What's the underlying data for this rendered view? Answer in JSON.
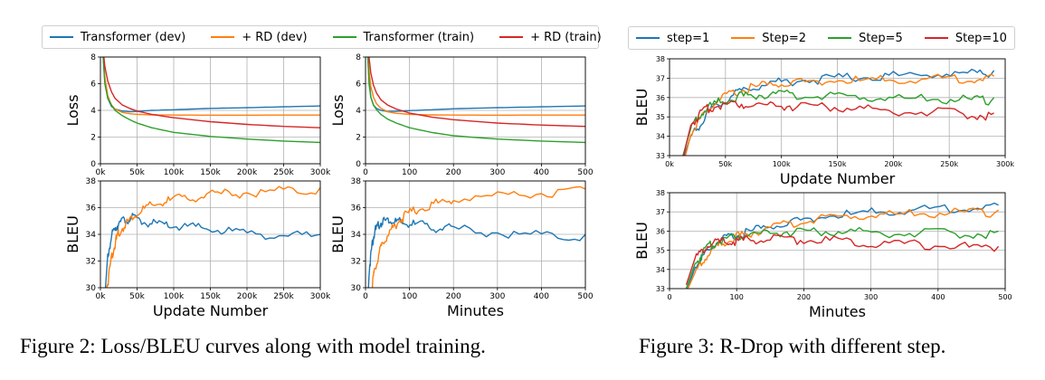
{
  "figure2": {
    "caption": "Figure 2: Loss/BLEU curves along with model training.",
    "legend": [
      {
        "label": "Transformer (dev)",
        "color": "#1f77b4"
      },
      {
        "label": "+ RD (dev)",
        "color": "#ff7f0e"
      },
      {
        "label": "Transformer (train)",
        "color": "#2ca02c"
      },
      {
        "label": "+ RD (train)",
        "color": "#d62728"
      }
    ]
  },
  "figure3": {
    "caption": "Figure 3: R-Drop with different step.",
    "legend": [
      {
        "label": "step=1",
        "color": "#1f77b4"
      },
      {
        "label": "Step=2",
        "color": "#ff7f0e"
      },
      {
        "label": "Step=5",
        "color": "#2ca02c"
      },
      {
        "label": "Step=10",
        "color": "#d62728"
      }
    ]
  },
  "chart_data": [
    {
      "id": "f2-loss-update",
      "type": "line",
      "xlabel": "",
      "ylabel": "Loss",
      "xlim": [
        0,
        300000
      ],
      "ylim": [
        0,
        8
      ],
      "xticks": [
        0,
        50000,
        100000,
        150000,
        200000,
        250000,
        300000
      ],
      "xticklabels": [
        "0k",
        "50k",
        "100k",
        "150k",
        "200k",
        "250k",
        "300k"
      ],
      "yticks": [
        0,
        2,
        4,
        6,
        8
      ],
      "yticklabels": [
        "0",
        "2",
        "4",
        "6",
        "8"
      ],
      "grid": true,
      "series": [
        {
          "name": "Transformer (dev)",
          "color": "#1f77b4",
          "x": [
            2000,
            6000,
            10000,
            15000,
            20000,
            30000,
            40000,
            50000,
            70000,
            100000,
            150000,
            200000,
            250000,
            300000
          ],
          "y": [
            9.5,
            6.2,
            4.9,
            4.3,
            4.1,
            3.95,
            3.9,
            3.92,
            4.0,
            4.05,
            4.15,
            4.2,
            4.27,
            4.33
          ]
        },
        {
          "name": "+ RD (dev)",
          "color": "#ff7f0e",
          "x": [
            2000,
            6000,
            10000,
            15000,
            20000,
            30000,
            40000,
            50000,
            70000,
            100000,
            150000,
            200000,
            250000,
            300000
          ],
          "y": [
            9.5,
            6.5,
            5.1,
            4.4,
            4.1,
            3.85,
            3.75,
            3.7,
            3.66,
            3.65,
            3.64,
            3.64,
            3.65,
            3.65
          ]
        },
        {
          "name": "Transformer (train)",
          "color": "#2ca02c",
          "x": [
            2000,
            6000,
            10000,
            15000,
            20000,
            30000,
            40000,
            50000,
            70000,
            100000,
            150000,
            200000,
            250000,
            300000
          ],
          "y": [
            9.5,
            6.0,
            4.9,
            4.4,
            4.0,
            3.6,
            3.3,
            3.05,
            2.7,
            2.35,
            2.05,
            1.85,
            1.7,
            1.6
          ]
        },
        {
          "name": "+ RD (train)",
          "color": "#d62728",
          "x": [
            2000,
            6000,
            10000,
            15000,
            20000,
            30000,
            40000,
            50000,
            70000,
            100000,
            150000,
            200000,
            250000,
            300000
          ],
          "y": [
            9.5,
            7.3,
            6.2,
            5.4,
            4.9,
            4.4,
            4.15,
            3.95,
            3.7,
            3.45,
            3.15,
            2.95,
            2.8,
            2.7
          ]
        }
      ]
    },
    {
      "id": "f2-loss-minutes",
      "type": "line",
      "xlabel": "",
      "ylabel": "Loss",
      "xlim": [
        0,
        500
      ],
      "ylim": [
        0,
        8
      ],
      "xticks": [
        0,
        100,
        200,
        300,
        400,
        500
      ],
      "xticklabels": [
        "0",
        "100",
        "200",
        "300",
        "400",
        "500"
      ],
      "yticks": [
        0,
        2,
        4,
        6,
        8
      ],
      "yticklabels": [
        "0",
        "2",
        "4",
        "6",
        "8"
      ],
      "grid": true,
      "series": [
        {
          "name": "Transformer (dev)",
          "color": "#1f77b4",
          "x": [
            3,
            8,
            12,
            18,
            25,
            35,
            50,
            70,
            100,
            150,
            200,
            300,
            400,
            500
          ],
          "y": [
            9.5,
            6.3,
            5.0,
            4.4,
            4.15,
            4.0,
            3.92,
            3.93,
            3.98,
            4.05,
            4.12,
            4.2,
            4.27,
            4.33
          ]
        },
        {
          "name": "+ RD (dev)",
          "color": "#ff7f0e",
          "x": [
            3,
            8,
            12,
            18,
            25,
            35,
            50,
            70,
            100,
            150,
            200,
            300,
            400,
            500
          ],
          "y": [
            9.5,
            7.0,
            5.8,
            5.0,
            4.5,
            4.15,
            3.9,
            3.78,
            3.7,
            3.66,
            3.65,
            3.64,
            3.65,
            3.65
          ]
        },
        {
          "name": "Transformer (train)",
          "color": "#2ca02c",
          "x": [
            3,
            8,
            12,
            18,
            25,
            35,
            50,
            70,
            100,
            150,
            200,
            300,
            400,
            500
          ],
          "y": [
            9.5,
            6.0,
            5.0,
            4.4,
            4.05,
            3.7,
            3.35,
            3.05,
            2.7,
            2.35,
            2.1,
            1.85,
            1.7,
            1.6
          ]
        },
        {
          "name": "+ RD (train)",
          "color": "#d62728",
          "x": [
            3,
            8,
            12,
            18,
            25,
            35,
            50,
            70,
            100,
            150,
            200,
            300,
            400,
            500
          ],
          "y": [
            9.5,
            8.0,
            6.8,
            5.9,
            5.3,
            4.8,
            4.4,
            4.1,
            3.8,
            3.5,
            3.3,
            3.05,
            2.9,
            2.8
          ]
        }
      ]
    },
    {
      "id": "f2-bleu-update",
      "type": "line",
      "xlabel": "Update Number",
      "ylabel": "BLEU",
      "xlim": [
        0,
        300000
      ],
      "ylim": [
        30,
        38
      ],
      "xticks": [
        0,
        50000,
        100000,
        150000,
        200000,
        250000,
        300000
      ],
      "xticklabels": [
        "0k",
        "50k",
        "100k",
        "150k",
        "200k",
        "250k",
        "300k"
      ],
      "yticks": [
        30,
        32,
        34,
        36,
        38
      ],
      "yticklabels": [
        "30",
        "32",
        "34",
        "36",
        "38"
      ],
      "grid": true,
      "series": [
        {
          "name": "Transformer (dev)",
          "color": "#1f77b4",
          "x": [
            5000,
            10000,
            15000,
            20000,
            25000,
            35000,
            45000,
            60000,
            80000,
            100000,
            130000,
            160000,
            200000,
            250000,
            300000
          ],
          "y": [
            28.5,
            32.5,
            34.0,
            34.7,
            35.0,
            35.3,
            35.4,
            35.1,
            34.9,
            34.8,
            34.7,
            34.5,
            34.3,
            34.1,
            34.0
          ]
        },
        {
          "name": "+ RD (dev)",
          "color": "#ff7f0e",
          "x": [
            5000,
            10000,
            15000,
            20000,
            25000,
            35000,
            45000,
            60000,
            80000,
            100000,
            130000,
            160000,
            200000,
            250000,
            300000
          ],
          "y": [
            28.0,
            30.5,
            32.5,
            33.5,
            34.3,
            35.0,
            35.6,
            36.1,
            36.5,
            36.8,
            37.0,
            37.2,
            37.3,
            37.45,
            37.5
          ]
        }
      ]
    },
    {
      "id": "f2-bleu-minutes",
      "type": "line",
      "xlabel": "Minutes",
      "ylabel": "BLEU",
      "xlim": [
        0,
        500
      ],
      "ylim": [
        30,
        38
      ],
      "xticks": [
        0,
        100,
        200,
        300,
        400,
        500
      ],
      "xticklabels": [
        "0",
        "100",
        "200",
        "300",
        "400",
        "500"
      ],
      "yticks": [
        30,
        32,
        34,
        36,
        38
      ],
      "yticklabels": [
        "30",
        "32",
        "34",
        "36",
        "38"
      ],
      "grid": true,
      "series": [
        {
          "name": "Transformer (dev)",
          "color": "#1f77b4",
          "x": [
            5,
            10,
            15,
            20,
            30,
            40,
            55,
            70,
            90,
            120,
            160,
            200,
            300,
            400,
            500
          ],
          "y": [
            29.0,
            32.0,
            33.5,
            34.3,
            34.9,
            35.2,
            35.3,
            35.1,
            35.0,
            34.9,
            34.7,
            34.6,
            34.3,
            34.1,
            34.0
          ]
        },
        {
          "name": "+ RD (dev)",
          "color": "#ff7f0e",
          "x": [
            5,
            10,
            15,
            20,
            30,
            40,
            55,
            70,
            90,
            120,
            160,
            200,
            300,
            400,
            500
          ],
          "y": [
            27.5,
            29.0,
            30.3,
            31.3,
            32.7,
            33.6,
            34.4,
            35.0,
            35.6,
            36.1,
            36.5,
            36.8,
            37.1,
            37.3,
            37.4
          ]
        }
      ]
    },
    {
      "id": "f3-update",
      "type": "line",
      "xlabel": "Update Number",
      "ylabel": "BLEU",
      "xlim": [
        0,
        300000
      ],
      "ylim": [
        33,
        38
      ],
      "xticks": [
        0,
        50000,
        100000,
        150000,
        200000,
        250000,
        300000
      ],
      "xticklabels": [
        "0k",
        "50k",
        "100k",
        "150k",
        "200k",
        "250k",
        "300k"
      ],
      "yticks": [
        33,
        34,
        35,
        36,
        37,
        38
      ],
      "yticklabels": [
        "33",
        "34",
        "35",
        "36",
        "37",
        "38"
      ],
      "grid": true,
      "series": [
        {
          "name": "step=1",
          "color": "#1f77b4",
          "x": [
            12000,
            20000,
            30000,
            40000,
            55000,
            70000,
            90000,
            110000,
            140000,
            170000,
            200000,
            240000,
            270000,
            290000
          ],
          "y": [
            32.8,
            34.2,
            35.0,
            35.6,
            36.2,
            36.6,
            36.9,
            37.0,
            37.1,
            37.2,
            37.25,
            37.35,
            37.4,
            37.4
          ]
        },
        {
          "name": "Step=2",
          "color": "#ff7f0e",
          "x": [
            12000,
            20000,
            30000,
            40000,
            55000,
            70000,
            90000,
            110000,
            140000,
            170000,
            200000,
            240000,
            270000,
            290000
          ],
          "y": [
            32.5,
            34.3,
            35.2,
            35.8,
            36.3,
            36.6,
            36.8,
            36.9,
            37.0,
            37.0,
            37.05,
            37.1,
            37.1,
            37.1
          ]
        },
        {
          "name": "Step=5",
          "color": "#2ca02c",
          "x": [
            12000,
            20000,
            30000,
            40000,
            55000,
            70000,
            90000,
            110000,
            140000,
            170000,
            200000,
            240000,
            270000,
            290000
          ],
          "y": [
            33.0,
            34.6,
            35.4,
            35.8,
            36.1,
            36.2,
            36.3,
            36.25,
            36.2,
            36.15,
            36.1,
            36.05,
            36.0,
            36.0
          ]
        },
        {
          "name": "Step=10",
          "color": "#d62728",
          "x": [
            12000,
            20000,
            30000,
            40000,
            55000,
            70000,
            90000,
            110000,
            140000,
            170000,
            200000,
            240000,
            270000,
            290000
          ],
          "y": [
            32.9,
            34.8,
            35.4,
            35.7,
            35.8,
            35.8,
            35.75,
            35.7,
            35.65,
            35.55,
            35.45,
            35.35,
            35.25,
            35.2
          ]
        }
      ]
    },
    {
      "id": "f3-minutes",
      "type": "line",
      "xlabel": "Minutes",
      "ylabel": "BLEU",
      "xlim": [
        0,
        500
      ],
      "ylim": [
        33,
        38
      ],
      "xticks": [
        0,
        100,
        200,
        300,
        400,
        500
      ],
      "xticklabels": [
        "0",
        "100",
        "200",
        "300",
        "400",
        "500"
      ],
      "yticks": [
        33,
        34,
        35,
        36,
        37,
        38
      ],
      "yticklabels": [
        "33",
        "34",
        "35",
        "36",
        "37",
        "38"
      ],
      "grid": true,
      "series": [
        {
          "name": "step=1",
          "color": "#1f77b4",
          "x": [
            25,
            40,
            55,
            70,
            90,
            110,
            140,
            180,
            220,
            270,
            320,
            380,
            440,
            490
          ],
          "y": [
            32.8,
            34.3,
            35.0,
            35.5,
            35.8,
            36.0,
            36.3,
            36.6,
            36.85,
            37.0,
            37.15,
            37.25,
            37.35,
            37.35
          ]
        },
        {
          "name": "Step=2",
          "color": "#ff7f0e",
          "x": [
            25,
            40,
            55,
            70,
            90,
            110,
            140,
            180,
            220,
            270,
            320,
            380,
            440,
            490
          ],
          "y": [
            32.8,
            34.0,
            34.8,
            35.3,
            35.7,
            35.9,
            36.2,
            36.5,
            36.75,
            36.9,
            37.0,
            37.05,
            37.1,
            37.1
          ]
        },
        {
          "name": "Step=5",
          "color": "#2ca02c",
          "x": [
            25,
            40,
            55,
            70,
            90,
            110,
            140,
            180,
            220,
            270,
            320,
            380,
            440,
            490
          ],
          "y": [
            33.0,
            34.5,
            35.2,
            35.6,
            35.8,
            35.95,
            36.05,
            36.1,
            36.1,
            36.1,
            36.05,
            36.0,
            36.0,
            36.0
          ]
        },
        {
          "name": "Step=10",
          "color": "#d62728",
          "x": [
            25,
            40,
            55,
            70,
            90,
            110,
            140,
            180,
            220,
            270,
            320,
            380,
            440,
            490
          ],
          "y": [
            33.2,
            34.8,
            35.3,
            35.5,
            35.6,
            35.65,
            35.7,
            35.7,
            35.65,
            35.6,
            35.5,
            35.4,
            35.3,
            35.2
          ]
        }
      ]
    }
  ]
}
